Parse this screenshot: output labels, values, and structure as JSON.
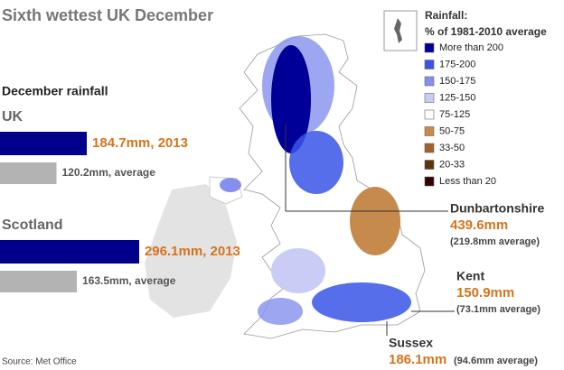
{
  "header": {
    "title": "Sixth wettest UK December",
    "subtitle": "December rainfall"
  },
  "bars": [
    {
      "region": "UK",
      "items": [
        {
          "value": 184.7,
          "label": "184.7mm, 2013",
          "color": "#00008b"
        },
        {
          "value": 120.2,
          "label": "120.2mm, average",
          "color": "#b3b3b3"
        }
      ]
    },
    {
      "region": "Scotland",
      "items": [
        {
          "value": 296.1,
          "label": "296.1mm, 2013",
          "color": "#00008b"
        },
        {
          "value": 163.5,
          "label": "163.5mm, average",
          "color": "#b3b3b3"
        }
      ]
    }
  ],
  "legend": {
    "title": "Rainfall:",
    "subtitle": "% of 1981-2010 average",
    "items": [
      {
        "name": "More than 200",
        "color": "#000099"
      },
      {
        "name": "175-200",
        "color": "#3a55e6"
      },
      {
        "name": "150-175",
        "color": "#8590ee"
      },
      {
        "name": "125-150",
        "color": "#c9cdf6"
      },
      {
        "name": "75-125",
        "color": "#ffffff"
      },
      {
        "name": "50-75",
        "color": "#c68a4c"
      },
      {
        "name": "33-50",
        "color": "#a0622e"
      },
      {
        "name": "20-33",
        "color": "#5c3411"
      },
      {
        "name": "Less than 20",
        "color": "#330000"
      }
    ]
  },
  "callouts": [
    {
      "place": "Dunbartonshire",
      "amount": "439.6mm",
      "average": "(219.8mm average)"
    },
    {
      "place": "Kent",
      "amount": "150.9mm",
      "average": "(73.1mm average)"
    },
    {
      "place": "Sussex",
      "amount": "186.1mm",
      "average": "(94.6mm average)"
    }
  ],
  "source": "Source: Met Office"
}
